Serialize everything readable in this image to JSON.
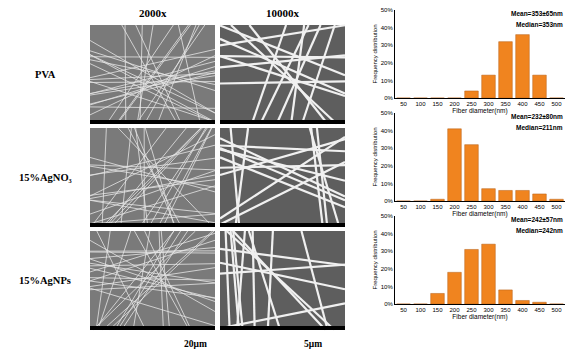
{
  "figure": {
    "column_labels": [
      "2000x",
      "10000x"
    ],
    "row_labels": [
      "PVA",
      "15%AgNO₃",
      "15%AgNPs"
    ],
    "scale_bars": [
      "20μm",
      "5μm"
    ]
  },
  "chart_data": [
    {
      "type": "bar",
      "xlabel": "Fiber diameter(nm)",
      "ylabel": "Frequency distribution",
      "x": [
        50,
        100,
        150,
        200,
        250,
        300,
        350,
        400,
        450,
        500
      ],
      "values": [
        0,
        0,
        0,
        0,
        4,
        13,
        32,
        36,
        13,
        0
      ],
      "color": "#f0841f",
      "xlim": [
        25,
        525
      ],
      "xticks": [
        50,
        100,
        150,
        200,
        250,
        300,
        350,
        400,
        450,
        500
      ],
      "ylim": [
        0,
        50
      ],
      "yticks": [
        {
          "value": 0,
          "label": "0%"
        },
        {
          "value": 10,
          "label": "10%"
        },
        {
          "value": 20,
          "label": "20%"
        },
        {
          "value": 30,
          "label": "30%"
        },
        {
          "value": 40,
          "label": "40%"
        },
        {
          "value": 50,
          "label": "50%"
        }
      ],
      "annotations": [
        "Mean=353±65nm",
        "Median=353nm"
      ],
      "grid": false
    },
    {
      "type": "bar",
      "xlabel": "Fiber diameter(nm)",
      "ylabel": "Frequency distribution",
      "x": [
        50,
        100,
        150,
        200,
        250,
        300,
        350,
        400,
        450,
        500
      ],
      "values": [
        0,
        0,
        1,
        41,
        32,
        7,
        6,
        6,
        4,
        1
      ],
      "color": "#f0841f",
      "xlim": [
        25,
        525
      ],
      "xticks": [
        50,
        100,
        150,
        200,
        250,
        300,
        350,
        400,
        450,
        500
      ],
      "ylim": [
        0,
        50
      ],
      "yticks": [
        {
          "value": 0,
          "label": "0%"
        },
        {
          "value": 10,
          "label": "10%"
        },
        {
          "value": 20,
          "label": "20%"
        },
        {
          "value": 30,
          "label": "30%"
        },
        {
          "value": 40,
          "label": "40%"
        },
        {
          "value": 50,
          "label": "50%"
        }
      ],
      "annotations": [
        "Mean=232±80nm",
        "Median=211nm"
      ],
      "grid": false
    },
    {
      "type": "bar",
      "xlabel": "Fiber diameter(nm)",
      "ylabel": "Frequency distribution",
      "x": [
        50,
        100,
        150,
        200,
        250,
        300,
        350,
        400,
        450,
        500
      ],
      "values": [
        0,
        0,
        6,
        18,
        31,
        34,
        8,
        2,
        1,
        0
      ],
      "color": "#f0841f",
      "xlim": [
        25,
        525
      ],
      "xticks": [
        50,
        100,
        150,
        200,
        250,
        300,
        350,
        400,
        450,
        500
      ],
      "ylim": [
        0,
        50
      ],
      "yticks": [
        {
          "value": 0,
          "label": "0%"
        },
        {
          "value": 10,
          "label": "10%"
        },
        {
          "value": 20,
          "label": "20%"
        },
        {
          "value": 30,
          "label": "30%"
        },
        {
          "value": 40,
          "label": "40%"
        },
        {
          "value": 50,
          "label": "50%"
        }
      ],
      "annotations": [
        "Mean=242±57nm",
        "Median=242nm"
      ],
      "grid": false
    }
  ]
}
